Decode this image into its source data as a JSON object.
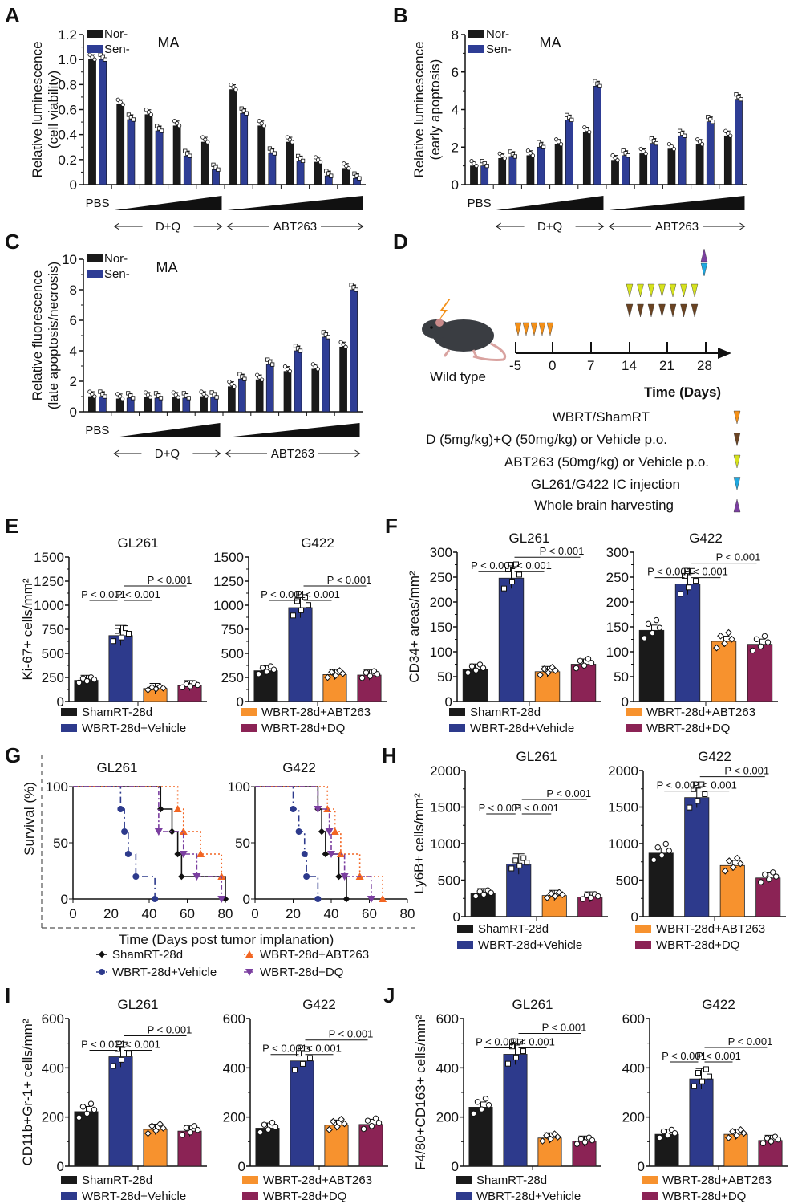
{
  "panel_letters": [
    "A",
    "B",
    "C",
    "D",
    "E",
    "F",
    "G",
    "H",
    "I",
    "J"
  ],
  "colors": {
    "nor": "#1a1a1a",
    "sen": "#2e3d95",
    "sham": "#1a1a1a",
    "vehicle": "#2d3a8c",
    "abt263": "#f7922e",
    "dq": "#8b2355",
    "orange_tri": "#f39019",
    "brown_tri": "#6b4423",
    "yellow_tri": "#d6e21e",
    "cyan_tri": "#1fa8e0",
    "purple_tri": "#7b3fa0",
    "km_abt": "#f26522",
    "km_dq": "#7b3fa0"
  },
  "legend_groups": [
    "ShamRT-28d",
    "WBRT-28d+Vehicle",
    "WBRT-28d+ABT263",
    "WBRT-28d+DQ"
  ],
  "schematic": {
    "mouse_label": "Wild type",
    "timeline_ticks": [
      "-5",
      "0",
      "7",
      "14",
      "21",
      "28"
    ],
    "time_label": "Time (Days)",
    "legend": [
      {
        "text": "WBRT/ShamRT",
        "marker": "orange-down-triangle"
      },
      {
        "text": "D (5mg/kg)+Q (50mg/kg) or Vehicle p.o.",
        "marker": "brown-down-triangle"
      },
      {
        "text": "ABT263 (50mg/kg) or Vehicle p.o.",
        "marker": "yellow-down-triangle"
      },
      {
        "text": "GL261/G422 IC injection",
        "marker": "cyan-down-triangle"
      },
      {
        "text": "Whole brain harvesting",
        "marker": "purple-up-triangle"
      }
    ]
  },
  "chart_data": [
    {
      "id": "A",
      "type": "bar",
      "title": "MA",
      "ylabel": "Relative luminescence\n(cell viability)",
      "ylim": [
        0,
        1.2
      ],
      "yticks": [
        0,
        0.2,
        0.4,
        0.6,
        0.8,
        1.0,
        1.2
      ],
      "ytick_labels": [
        "0",
        "0.2",
        "0.4",
        "0.6",
        "0.8",
        "1.0",
        "1.2"
      ],
      "categories": [
        "PBS",
        "D+Q 1",
        "D+Q 2",
        "D+Q 3",
        "D+Q 4",
        "ABT263 1",
        "ABT263 2",
        "ABT263 3",
        "ABT263 4",
        "ABT263 5"
      ],
      "group_labels": {
        "pbs": "PBS",
        "dq": "D+Q",
        "abt": "ABT263"
      },
      "legend": [
        "Nor-",
        "Sen-"
      ],
      "series": [
        {
          "name": "Nor-",
          "values": [
            1.0,
            0.64,
            0.56,
            0.47,
            0.34,
            0.76,
            0.47,
            0.34,
            0.18,
            0.13
          ]
        },
        {
          "name": "Sen-",
          "values": [
            1.0,
            0.52,
            0.43,
            0.23,
            0.12,
            0.57,
            0.25,
            0.19,
            0.07,
            0.05
          ]
        }
      ]
    },
    {
      "id": "B",
      "type": "bar",
      "title": "MA",
      "ylabel": "Relative luminescence\n(early apoptosis)",
      "ylim": [
        0,
        8
      ],
      "yticks": [
        0,
        2,
        4,
        6,
        8
      ],
      "ytick_labels": [
        "0",
        "2",
        "4",
        "6",
        "8"
      ],
      "categories": [
        "PBS",
        "D+Q 1",
        "D+Q 2",
        "D+Q 3",
        "D+Q 4",
        "ABT263 1",
        "ABT263 2",
        "ABT263 3",
        "ABT263 4",
        "ABT263 5"
      ],
      "group_labels": {
        "pbs": "PBS",
        "dq": "D+Q",
        "abt": "ABT263"
      },
      "legend": [
        "Nor-",
        "Sen-"
      ],
      "series": [
        {
          "name": "Nor-",
          "values": [
            1.0,
            1.4,
            1.55,
            2.15,
            2.8,
            1.3,
            1.65,
            1.9,
            2.15,
            2.6
          ]
        },
        {
          "name": "Sen-",
          "values": [
            1.0,
            1.5,
            2.0,
            3.45,
            5.25,
            1.55,
            2.2,
            2.6,
            3.35,
            4.55
          ]
        }
      ]
    },
    {
      "id": "C",
      "type": "bar",
      "title": "MA",
      "ylabel": "Relative fluorescence\n(late apoptosis/necrosis)",
      "ylim": [
        0,
        10
      ],
      "yticks": [
        0,
        2,
        4,
        6,
        8,
        10
      ],
      "ytick_labels": [
        "0",
        "2",
        "4",
        "6",
        "8",
        "10"
      ],
      "categories": [
        "PBS",
        "D+Q 1",
        "D+Q 2",
        "D+Q 3",
        "D+Q 4",
        "ABT263 1",
        "ABT263 2",
        "ABT263 3",
        "ABT263 4",
        "ABT263 5"
      ],
      "group_labels": {
        "pbs": "PBS",
        "dq": "D+Q",
        "abt": "ABT263"
      },
      "legend": [
        "Nor-",
        "Sen-"
      ],
      "series": [
        {
          "name": "Nor-",
          "values": [
            1.0,
            0.85,
            0.95,
            0.95,
            1.0,
            1.65,
            2.1,
            2.65,
            2.8,
            4.25
          ]
        },
        {
          "name": "Sen-",
          "values": [
            1.0,
            0.9,
            0.9,
            0.9,
            0.95,
            2.15,
            3.1,
            4.0,
            4.9,
            8.0
          ]
        }
      ]
    },
    {
      "id": "E",
      "type": "bar",
      "ylabel": "Ki-67+ cells/mm²",
      "categories": [
        "ShamRT-28d",
        "WBRT-28d+Vehicle",
        "WBRT-28d+ABT263",
        "WBRT-28d+DQ"
      ],
      "subplots": [
        {
          "title": "GL261",
          "ylim": [
            0,
            1500
          ],
          "yticks": [
            0,
            250,
            500,
            750,
            1000,
            1250,
            1500
          ],
          "values": [
            220,
            685,
            135,
            165
          ],
          "pvalues": [
            "P < 0.001",
            "P < 0.001",
            "P < 0.001"
          ]
        },
        {
          "title": "G422",
          "ylim": [
            0,
            1500
          ],
          "yticks": [
            0,
            250,
            500,
            750,
            1000,
            1250,
            1500
          ],
          "values": [
            320,
            975,
            280,
            275
          ],
          "pvalues": [
            "P < 0.001",
            "P < 0.001",
            "P < 0.001"
          ]
        }
      ]
    },
    {
      "id": "F",
      "type": "bar",
      "ylabel": "CD34+ areas/mm²",
      "categories": [
        "ShamRT-28d",
        "WBRT-28d+Vehicle",
        "WBRT-28d+ABT263",
        "WBRT-28d+DQ"
      ],
      "subplots": [
        {
          "title": "GL261",
          "ylim": [
            0,
            300
          ],
          "yticks": [
            0,
            50,
            100,
            150,
            200,
            250,
            300
          ],
          "values": [
            65,
            248,
            60,
            75
          ],
          "pvalues": [
            "P < 0.001",
            "P < 0.001",
            "P < 0.001"
          ]
        },
        {
          "title": "G422",
          "ylim": [
            0,
            300
          ],
          "yticks": [
            0,
            50,
            100,
            150,
            200,
            250,
            300
          ],
          "values": [
            143,
            236,
            121,
            115
          ],
          "pvalues": [
            "P < 0.001",
            "P < 0.001",
            "P < 0.001"
          ]
        }
      ]
    },
    {
      "id": "G",
      "type": "line",
      "subtype": "kaplan-meier",
      "ylabel": "Survival (%)",
      "xlabel": "Time (Days post tumor implanation)",
      "xlim": [
        0,
        80
      ],
      "ylim": [
        0,
        100
      ],
      "xticks": [
        0,
        20,
        40,
        60,
        80
      ],
      "yticks": [
        0,
        50,
        100
      ],
      "legend": [
        "ShamRT-28d",
        "WBRT-28d+Vehicle",
        "WBRT-28d+ABT263",
        "WBRT-28d+DQ"
      ],
      "subplots": [
        {
          "title": "GL261",
          "series": [
            {
              "name": "ShamRT-28d",
              "x": [
                0,
                46,
                52,
                55,
                57,
                80
              ],
              "y": [
                100,
                80,
                60,
                40,
                20,
                0
              ]
            },
            {
              "name": "WBRT-28d+Vehicle",
              "x": [
                0,
                25,
                27,
                29,
                33,
                43
              ],
              "y": [
                100,
                80,
                60,
                40,
                20,
                0
              ]
            },
            {
              "name": "WBRT-28d+ABT263",
              "x": [
                0,
                55,
                58,
                67,
                78
              ],
              "y": [
                100,
                80,
                60,
                40,
                20
              ]
            },
            {
              "name": "WBRT-28d+DQ",
              "x": [
                0,
                45,
                58,
                65,
                78
              ],
              "y": [
                100,
                60,
                40,
                20,
                0
              ]
            }
          ]
        },
        {
          "title": "G422",
          "series": [
            {
              "name": "ShamRT-28d",
              "x": [
                0,
                33,
                35,
                37,
                44,
                48
              ],
              "y": [
                100,
                80,
                60,
                40,
                20,
                0
              ]
            },
            {
              "name": "WBRT-28d+Vehicle",
              "x": [
                0,
                20,
                23,
                26,
                27,
                33
              ],
              "y": [
                100,
                80,
                60,
                40,
                20,
                0
              ]
            },
            {
              "name": "WBRT-28d+ABT263",
              "x": [
                0,
                38,
                42,
                45,
                55,
                67
              ],
              "y": [
                100,
                80,
                60,
                40,
                20,
                0
              ]
            },
            {
              "name": "WBRT-28d+DQ",
              "x": [
                0,
                33,
                39,
                40,
                47,
                61
              ],
              "y": [
                100,
                80,
                60,
                40,
                20,
                0
              ]
            }
          ]
        }
      ]
    },
    {
      "id": "H",
      "type": "bar",
      "ylabel": "Ly6B+ cells/mm²",
      "categories": [
        "ShamRT-28d",
        "WBRT-28d+Vehicle",
        "WBRT-28d+ABT263",
        "WBRT-28d+DQ"
      ],
      "subplots": [
        {
          "title": "GL261",
          "ylim": [
            0,
            2000
          ],
          "yticks": [
            0,
            500,
            1000,
            1500,
            2000
          ],
          "values": [
            315,
            720,
            290,
            270
          ],
          "pvalues": [
            "P < 0.001",
            "P < 0.001",
            "P < 0.001"
          ]
        },
        {
          "title": "G422",
          "ylim": [
            0,
            2000
          ],
          "yticks": [
            0,
            500,
            1000,
            1500,
            2000
          ],
          "values": [
            870,
            1630,
            700,
            530
          ],
          "pvalues": [
            "P < 0.001",
            "P < 0.001",
            "P < 0.001"
          ]
        }
      ]
    },
    {
      "id": "I",
      "type": "bar",
      "ylabel": "CD11b+Gr-1+ cells/mm²",
      "categories": [
        "ShamRT-28d",
        "WBRT-28d+Vehicle",
        "WBRT-28d+ABT263",
        "WBRT-28d+DQ"
      ],
      "subplots": [
        {
          "title": "GL261",
          "ylim": [
            0,
            600
          ],
          "yticks": [
            0,
            200,
            400,
            600
          ],
          "values": [
            222,
            445,
            150,
            143
          ],
          "pvalues": [
            "P < 0.001",
            "P < 0.001",
            "P < 0.001"
          ]
        },
        {
          "title": "G422",
          "ylim": [
            0,
            600
          ],
          "yticks": [
            0,
            200,
            400,
            600
          ],
          "values": [
            155,
            428,
            167,
            170
          ],
          "pvalues": [
            "P < 0.001",
            "P < 0.001",
            "P < 0.001"
          ]
        }
      ]
    },
    {
      "id": "J",
      "type": "bar",
      "ylabel": "F4/80+CD163+ cells/mm²",
      "categories": [
        "ShamRT-28d",
        "WBRT-28d+Vehicle",
        "WBRT-28d+ABT263",
        "WBRT-28d+DQ"
      ],
      "subplots": [
        {
          "title": "GL261",
          "ylim": [
            0,
            600
          ],
          "yticks": [
            0,
            200,
            400,
            600
          ],
          "values": [
            240,
            455,
            115,
            102
          ],
          "pvalues": [
            "P < 0.001",
            "P < 0.001",
            "P < 0.001"
          ]
        },
        {
          "title": "G422",
          "ylim": [
            0,
            600
          ],
          "yticks": [
            0,
            200,
            400,
            600
          ],
          "values": [
            130,
            355,
            130,
            105
          ],
          "pvalues": [
            "P < 0.001",
            "P < 0.001",
            "P < 0.001"
          ]
        }
      ]
    }
  ]
}
